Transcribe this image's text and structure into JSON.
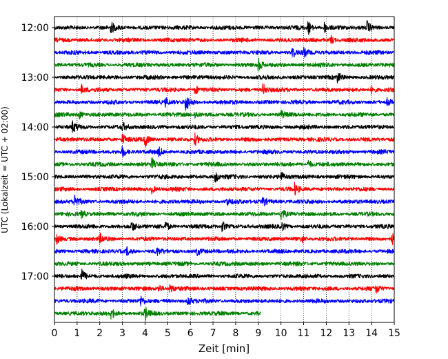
{
  "chart_data": {
    "type": "line",
    "title": "",
    "xlabel": "Zeit  [min]",
    "ylabel": "UTC (Lokalzeit = UTC + 02:00)",
    "xlim": [
      0,
      15
    ],
    "x_ticks": [
      0,
      1,
      2,
      3,
      4,
      5,
      6,
      7,
      8,
      9,
      10,
      11,
      12,
      13,
      14,
      15
    ],
    "x_tick_labels": [
      "0",
      "1",
      "2",
      "3",
      "4",
      "5",
      "6",
      "7",
      "8",
      "9",
      "10",
      "11",
      "12",
      "13",
      "14",
      "15"
    ],
    "x_grid": "vertical dotted at every minute",
    "y_axis_inverted": true,
    "y_tick_labels": [
      "12:00",
      "13:00",
      "14:00",
      "15:00",
      "16:00",
      "17:00"
    ],
    "y_tick_rows": [
      0,
      4,
      8,
      12,
      16,
      20
    ],
    "row_colors": [
      "#000000",
      "#ff0000",
      "#0000ff",
      "#008000"
    ],
    "rows": [
      {
        "start": "12:00",
        "color": "#000000",
        "end_min": 15,
        "events": [
          [
            2.5,
            0.8
          ],
          [
            11.2,
            1.1
          ],
          [
            11.9,
            0.9
          ],
          [
            13.8,
            1.0
          ]
        ]
      },
      {
        "start": "12:15",
        "color": "#ff0000",
        "end_min": 15,
        "events": [
          [
            12.2,
            0.7
          ]
        ]
      },
      {
        "start": "12:30",
        "color": "#0000ff",
        "end_min": 15,
        "events": [
          [
            10.5,
            0.9
          ],
          [
            11.0,
            0.6
          ]
        ]
      },
      {
        "start": "12:45",
        "color": "#008000",
        "end_min": 15,
        "events": [
          [
            9.0,
            1.0
          ]
        ]
      },
      {
        "start": "13:00",
        "color": "#000000",
        "end_min": 15,
        "events": [
          [
            12.5,
            0.7
          ]
        ]
      },
      {
        "start": "13:15",
        "color": "#ff0000",
        "end_min": 15,
        "events": [
          [
            1.2,
            0.7
          ],
          [
            6.2,
            0.8
          ],
          [
            9.2,
            1.0
          ],
          [
            14.0,
            0.7
          ]
        ]
      },
      {
        "start": "13:30",
        "color": "#0000ff",
        "end_min": 15,
        "events": [
          [
            4.9,
            0.6
          ],
          [
            5.8,
            1.5
          ],
          [
            14.7,
            0.7
          ]
        ]
      },
      {
        "start": "13:45",
        "color": "#008000",
        "end_min": 15,
        "events": [
          [
            1.1,
            0.6
          ],
          [
            6.2,
            0.6
          ],
          [
            10.0,
            0.6
          ]
        ]
      },
      {
        "start": "14:00",
        "color": "#000000",
        "end_min": 15,
        "events": [
          [
            0.8,
            0.9
          ],
          [
            3.0,
            0.6
          ]
        ]
      },
      {
        "start": "14:15",
        "color": "#ff0000",
        "end_min": 15,
        "events": [
          [
            3.0,
            0.9
          ],
          [
            4.0,
            1.0
          ],
          [
            6.2,
            0.9
          ]
        ]
      },
      {
        "start": "14:30",
        "color": "#0000ff",
        "end_min": 15,
        "events": [
          [
            3.0,
            0.9
          ],
          [
            4.6,
            0.7
          ]
        ]
      },
      {
        "start": "14:45",
        "color": "#008000",
        "end_min": 15,
        "events": [
          [
            4.3,
            0.9
          ],
          [
            11.2,
            0.7
          ]
        ]
      },
      {
        "start": "15:00",
        "color": "#000000",
        "end_min": 15,
        "events": [
          [
            7.1,
            0.9
          ],
          [
            10.0,
            0.8
          ]
        ]
      },
      {
        "start": "15:15",
        "color": "#ff0000",
        "end_min": 15,
        "events": [
          [
            4.3,
            0.6
          ],
          [
            10.6,
            0.9
          ]
        ]
      },
      {
        "start": "15:30",
        "color": "#0000ff",
        "end_min": 15,
        "events": [
          [
            0.9,
            1.2
          ],
          [
            7.6,
            0.6
          ],
          [
            9.2,
            0.8
          ]
        ]
      },
      {
        "start": "15:45",
        "color": "#008000",
        "end_min": 15,
        "events": [
          [
            1.2,
            0.6
          ],
          [
            10.0,
            1.1
          ]
        ]
      },
      {
        "start": "16:00",
        "color": "#000000",
        "end_min": 15,
        "events": [
          [
            3.4,
            0.9
          ],
          [
            4.9,
            0.8
          ],
          [
            7.4,
            0.8
          ],
          [
            10.0,
            0.9
          ]
        ]
      },
      {
        "start": "16:15",
        "color": "#ff0000",
        "end_min": 15,
        "events": [
          [
            0.1,
            0.8
          ],
          [
            2.0,
            0.7
          ],
          [
            10.9,
            0.7
          ],
          [
            14.9,
            0.8
          ]
        ]
      },
      {
        "start": "16:30",
        "color": "#0000ff",
        "end_min": 15,
        "events": [
          [
            3.2,
            0.6
          ],
          [
            4.5,
            0.6
          ],
          [
            6.3,
            0.6
          ]
        ]
      },
      {
        "start": "16:45",
        "color": "#008000",
        "end_min": 15,
        "events": []
      },
      {
        "start": "17:00",
        "color": "#000000",
        "end_min": 15,
        "events": [
          [
            1.2,
            1.1
          ]
        ]
      },
      {
        "start": "17:15",
        "color": "#ff0000",
        "end_min": 15,
        "events": [
          [
            4.6,
            0.7
          ],
          [
            5.1,
            0.8
          ],
          [
            14.2,
            0.7
          ]
        ]
      },
      {
        "start": "17:30",
        "color": "#0000ff",
        "end_min": 15,
        "events": [
          [
            3.8,
            0.8
          ],
          [
            5.9,
            0.8
          ]
        ]
      },
      {
        "start": "17:45",
        "color": "#008000",
        "end_min": 9.1,
        "events": [
          [
            2.5,
            0.8
          ],
          [
            4.0,
            1.0
          ]
        ]
      }
    ]
  }
}
